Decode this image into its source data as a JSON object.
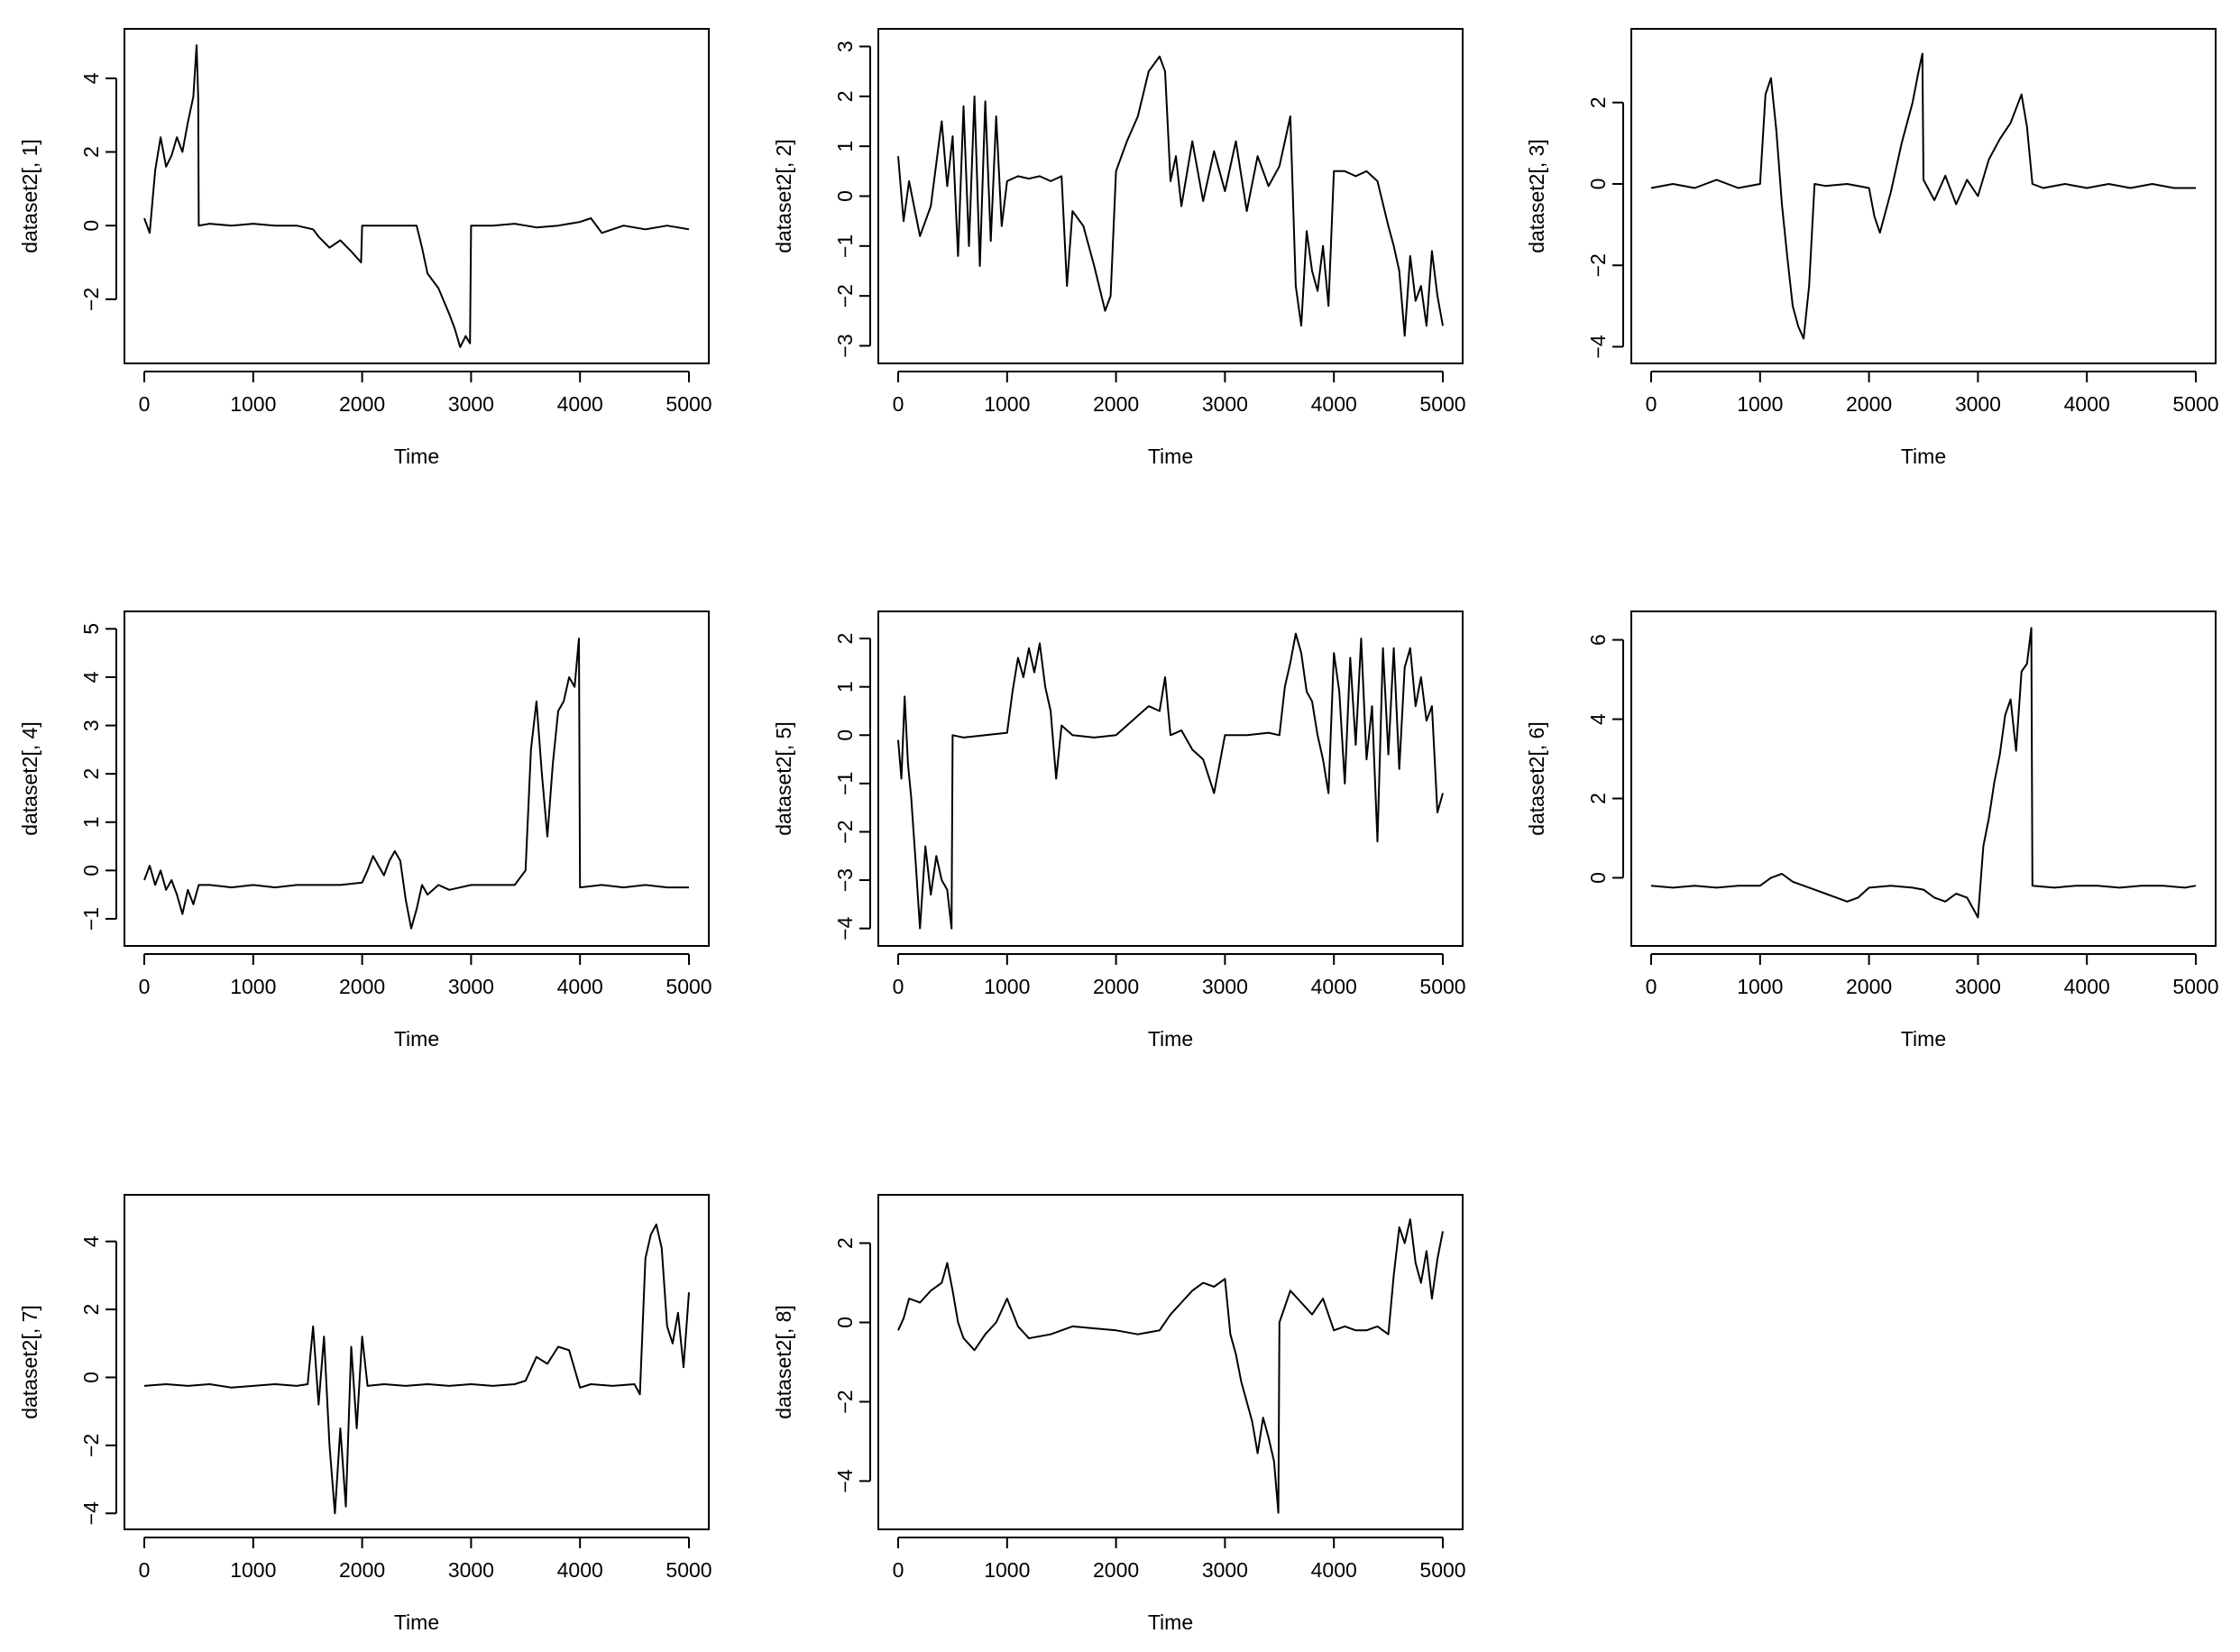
{
  "chart_data": [
    {
      "type": "line",
      "xlabel": "Time",
      "ylabel": "dataset2[, 1]",
      "xlim": [
        0,
        5000
      ],
      "xticks": [
        0,
        1000,
        2000,
        3000,
        4000,
        5000
      ],
      "ylim": [
        -3.4,
        5.0
      ],
      "yticks": [
        -2,
        0,
        2,
        4
      ],
      "ytick_labels": [
        "−2",
        "0",
        "2",
        "4"
      ],
      "grid": false,
      "x": [
        0,
        50,
        100,
        150,
        200,
        250,
        300,
        350,
        400,
        450,
        480,
        495,
        500,
        600,
        800,
        1000,
        1200,
        1400,
        1550,
        1600,
        1700,
        1800,
        1900,
        1990,
        2000,
        2200,
        2400,
        2500,
        2550,
        2600,
        2700,
        2800,
        2850,
        2900,
        2950,
        2990,
        3000,
        3200,
        3400,
        3600,
        3800,
        4000,
        4100,
        4200,
        4400,
        4600,
        4800,
        5000
      ],
      "y": [
        0.2,
        -0.2,
        1.5,
        2.4,
        1.6,
        1.9,
        2.4,
        2.0,
        2.8,
        3.5,
        4.9,
        3.5,
        0.0,
        0.05,
        0.0,
        0.05,
        0.0,
        0.0,
        -0.1,
        -0.3,
        -0.6,
        -0.4,
        -0.7,
        -1.0,
        0.0,
        0.0,
        0.0,
        0.0,
        -0.6,
        -1.3,
        -1.7,
        -2.4,
        -2.8,
        -3.3,
        -3.0,
        -3.2,
        0.0,
        0.0,
        0.05,
        -0.05,
        0.0,
        0.1,
        0.2,
        -0.2,
        0.0,
        -0.1,
        0.0,
        -0.1
      ]
    },
    {
      "type": "line",
      "xlabel": "Time",
      "ylabel": "dataset2[, 2]",
      "xlim": [
        0,
        5000
      ],
      "xticks": [
        0,
        1000,
        2000,
        3000,
        4000,
        5000
      ],
      "ylim": [
        -3.1,
        3.1
      ],
      "yticks": [
        -3,
        -2,
        -1,
        0,
        1,
        2,
        3
      ],
      "ytick_labels": [
        "−3",
        "−2",
        "−1",
        "0",
        "1",
        "2",
        "3"
      ],
      "grid": false,
      "x": [
        0,
        50,
        100,
        200,
        300,
        400,
        450,
        500,
        550,
        600,
        650,
        700,
        750,
        800,
        850,
        900,
        950,
        1000,
        1100,
        1200,
        1300,
        1400,
        1500,
        1550,
        1600,
        1700,
        1800,
        1900,
        1950,
        2000,
        2100,
        2200,
        2300,
        2400,
        2450,
        2500,
        2550,
        2600,
        2700,
        2800,
        2900,
        3000,
        3100,
        3200,
        3300,
        3400,
        3500,
        3600,
        3650,
        3700,
        3750,
        3800,
        3850,
        3900,
        3950,
        4000,
        4100,
        4200,
        4300,
        4400,
        4500,
        4550,
        4600,
        4650,
        4700,
        4750,
        4800,
        4850,
        4900,
        4950,
        5000
      ],
      "y": [
        0.8,
        -0.5,
        0.3,
        -0.8,
        -0.2,
        1.5,
        0.2,
        1.2,
        -1.2,
        1.8,
        -1.0,
        2.0,
        -1.4,
        1.9,
        -0.9,
        1.6,
        -0.6,
        0.3,
        0.4,
        0.35,
        0.4,
        0.3,
        0.4,
        -1.8,
        -0.3,
        -0.6,
        -1.4,
        -2.3,
        -2.0,
        0.5,
        1.1,
        1.6,
        2.5,
        2.8,
        2.5,
        0.3,
        0.8,
        -0.2,
        1.1,
        -0.1,
        0.9,
        0.1,
        1.1,
        -0.3,
        0.8,
        0.2,
        0.6,
        1.6,
        -1.8,
        -2.6,
        -0.7,
        -1.5,
        -1.9,
        -1.0,
        -2.2,
        0.5,
        0.5,
        0.4,
        0.5,
        0.3,
        -0.6,
        -1.0,
        -1.5,
        -2.8,
        -1.2,
        -2.1,
        -1.8,
        -2.6,
        -1.1,
        -2.0,
        -2.6
      ]
    },
    {
      "type": "line",
      "xlabel": "Time",
      "ylabel": "dataset2[, 3]",
      "xlim": [
        0,
        5000
      ],
      "xticks": [
        0,
        1000,
        2000,
        3000,
        4000,
        5000
      ],
      "ylim": [
        -4.1,
        3.5
      ],
      "yticks": [
        -4,
        -2,
        0,
        2
      ],
      "ytick_labels": [
        "−4",
        "−2",
        "0",
        "2"
      ],
      "grid": false,
      "x": [
        0,
        200,
        400,
        600,
        800,
        1000,
        1050,
        1100,
        1150,
        1200,
        1250,
        1300,
        1350,
        1400,
        1450,
        1500,
        1600,
        1800,
        2000,
        2050,
        2100,
        2200,
        2300,
        2400,
        2450,
        2490,
        2500,
        2600,
        2700,
        2800,
        2900,
        3000,
        3100,
        3200,
        3300,
        3400,
        3450,
        3500,
        3600,
        3800,
        4000,
        4200,
        4400,
        4600,
        4800,
        5000
      ],
      "y": [
        -0.1,
        0.0,
        -0.1,
        0.1,
        -0.1,
        0.0,
        2.2,
        2.6,
        1.3,
        -0.5,
        -1.8,
        -3.0,
        -3.5,
        -3.8,
        -2.5,
        0.0,
        -0.05,
        0.0,
        -0.1,
        -0.8,
        -1.2,
        -0.2,
        1.0,
        2.0,
        2.7,
        3.2,
        0.1,
        -0.4,
        0.2,
        -0.5,
        0.1,
        -0.3,
        0.6,
        1.1,
        1.5,
        2.2,
        1.4,
        0.0,
        -0.1,
        0.0,
        -0.1,
        0.0,
        -0.1,
        0.0,
        -0.1,
        -0.1
      ]
    },
    {
      "type": "line",
      "xlabel": "Time",
      "ylabel": "dataset2[, 4]",
      "xlim": [
        0,
        5000
      ],
      "xticks": [
        0,
        1000,
        2000,
        3000,
        4000,
        5000
      ],
      "ylim": [
        -1.3,
        5.1
      ],
      "yticks": [
        -1,
        0,
        1,
        2,
        3,
        4,
        5
      ],
      "ytick_labels": [
        "−1",
        "0",
        "1",
        "2",
        "3",
        "4",
        "5"
      ],
      "grid": false,
      "x": [
        0,
        50,
        100,
        150,
        200,
        250,
        300,
        350,
        400,
        450,
        500,
        600,
        800,
        1000,
        1200,
        1400,
        1600,
        1800,
        2000,
        2050,
        2100,
        2150,
        2200,
        2250,
        2300,
        2350,
        2400,
        2450,
        2500,
        2550,
        2600,
        2700,
        2800,
        3000,
        3200,
        3400,
        3500,
        3550,
        3600,
        3650,
        3700,
        3750,
        3800,
        3850,
        3900,
        3950,
        3990,
        4000,
        4200,
        4400,
        4600,
        4800,
        5000
      ],
      "y": [
        -0.2,
        0.1,
        -0.3,
        0.0,
        -0.4,
        -0.2,
        -0.5,
        -0.9,
        -0.4,
        -0.7,
        -0.3,
        -0.3,
        -0.35,
        -0.3,
        -0.35,
        -0.3,
        -0.3,
        -0.3,
        -0.25,
        0.0,
        0.3,
        0.1,
        -0.1,
        0.2,
        0.4,
        0.2,
        -0.6,
        -1.2,
        -0.8,
        -0.3,
        -0.5,
        -0.3,
        -0.4,
        -0.3,
        -0.3,
        -0.3,
        0.0,
        2.5,
        3.5,
        2.0,
        0.7,
        2.2,
        3.3,
        3.5,
        4.0,
        3.8,
        4.8,
        -0.35,
        -0.3,
        -0.35,
        -0.3,
        -0.35,
        -0.35
      ]
    },
    {
      "type": "line",
      "xlabel": "Time",
      "ylabel": "dataset2[, 5]",
      "xlim": [
        0,
        5000
      ],
      "xticks": [
        0,
        1000,
        2000,
        3000,
        4000,
        5000
      ],
      "ylim": [
        -4.1,
        2.3
      ],
      "yticks": [
        -4,
        -3,
        -2,
        -1,
        0,
        1,
        2
      ],
      "ytick_labels": [
        "−4",
        "−3",
        "−2",
        "−1",
        "0",
        "1",
        "2"
      ],
      "grid": false,
      "x": [
        0,
        30,
        60,
        90,
        120,
        160,
        200,
        250,
        300,
        350,
        400,
        450,
        490,
        500,
        600,
        800,
        1000,
        1050,
        1100,
        1150,
        1200,
        1250,
        1300,
        1350,
        1400,
        1450,
        1500,
        1600,
        1800,
        2000,
        2100,
        2200,
        2300,
        2400,
        2450,
        2500,
        2600,
        2700,
        2800,
        2900,
        2950,
        3000,
        3200,
        3400,
        3500,
        3550,
        3600,
        3650,
        3700,
        3750,
        3800,
        3850,
        3900,
        3950,
        4000,
        4050,
        4100,
        4150,
        4200,
        4250,
        4300,
        4350,
        4400,
        4450,
        4500,
        4550,
        4600,
        4650,
        4700,
        4750,
        4800,
        4850,
        4900,
        4950,
        5000
      ],
      "y": [
        -0.1,
        -0.9,
        0.8,
        -0.6,
        -1.3,
        -2.6,
        -4.0,
        -2.3,
        -3.3,
        -2.5,
        -3.0,
        -3.2,
        -4.0,
        0.0,
        -0.05,
        0.0,
        0.05,
        0.9,
        1.6,
        1.2,
        1.8,
        1.3,
        1.9,
        1.0,
        0.5,
        -0.9,
        0.2,
        0.0,
        -0.05,
        0.0,
        0.2,
        0.4,
        0.6,
        0.5,
        1.2,
        0.0,
        0.1,
        -0.3,
        -0.5,
        -1.2,
        -0.6,
        0.0,
        0.0,
        0.05,
        0.0,
        1.0,
        1.5,
        2.1,
        1.7,
        0.9,
        0.7,
        0.0,
        -0.5,
        -1.2,
        1.7,
        0.9,
        -1.0,
        1.6,
        -0.2,
        2.0,
        -0.5,
        0.6,
        -2.2,
        1.8,
        -0.4,
        1.8,
        -0.7,
        1.4,
        1.8,
        0.6,
        1.2,
        0.3,
        0.6,
        -1.6,
        -1.2
      ]
    },
    {
      "type": "line",
      "xlabel": "Time",
      "ylabel": "dataset2[, 6]",
      "xlim": [
        0,
        5000
      ],
      "xticks": [
        0,
        1000,
        2000,
        3000,
        4000,
        5000
      ],
      "ylim": [
        -1.4,
        6.4
      ],
      "yticks": [
        0,
        2,
        4,
        6
      ],
      "ytick_labels": [
        "0",
        "2",
        "4",
        "6"
      ],
      "grid": false,
      "x": [
        0,
        200,
        400,
        600,
        800,
        1000,
        1100,
        1200,
        1300,
        1400,
        1500,
        1600,
        1700,
        1800,
        1900,
        2000,
        2200,
        2400,
        2500,
        2600,
        2700,
        2800,
        2900,
        3000,
        3050,
        3100,
        3150,
        3200,
        3250,
        3300,
        3350,
        3400,
        3450,
        3490,
        3500,
        3700,
        3900,
        4100,
        4300,
        4500,
        4700,
        4900,
        5000
      ],
      "y": [
        -0.2,
        -0.25,
        -0.2,
        -0.25,
        -0.2,
        -0.2,
        0.0,
        0.1,
        -0.1,
        -0.2,
        -0.3,
        -0.4,
        -0.5,
        -0.6,
        -0.5,
        -0.25,
        -0.2,
        -0.25,
        -0.3,
        -0.5,
        -0.6,
        -0.4,
        -0.5,
        -1.0,
        0.8,
        1.5,
        2.4,
        3.1,
        4.1,
        4.5,
        3.2,
        5.2,
        5.4,
        6.3,
        -0.2,
        -0.25,
        -0.2,
        -0.2,
        -0.25,
        -0.2,
        -0.2,
        -0.25,
        -0.2
      ]
    },
    {
      "type": "line",
      "xlabel": "Time",
      "ylabel": "dataset2[, 7]",
      "xlim": [
        0,
        5000
      ],
      "xticks": [
        0,
        1000,
        2000,
        3000,
        4000,
        5000
      ],
      "ylim": [
        -4.1,
        5.0
      ],
      "yticks": [
        -4,
        -2,
        0,
        2,
        4
      ],
      "ytick_labels": [
        "−4",
        "−2",
        "0",
        "2",
        "4"
      ],
      "grid": false,
      "x": [
        0,
        200,
        400,
        600,
        800,
        1000,
        1200,
        1400,
        1500,
        1550,
        1600,
        1650,
        1700,
        1750,
        1800,
        1850,
        1900,
        1950,
        2000,
        2050,
        2200,
        2400,
        2600,
        2800,
        3000,
        3200,
        3400,
        3500,
        3600,
        3700,
        3800,
        3900,
        4000,
        4100,
        4300,
        4500,
        4550,
        4600,
        4650,
        4700,
        4750,
        4800,
        4850,
        4900,
        4950,
        5000
      ],
      "y": [
        -0.25,
        -0.2,
        -0.25,
        -0.2,
        -0.3,
        -0.25,
        -0.2,
        -0.25,
        -0.2,
        1.5,
        -0.8,
        1.2,
        -2.0,
        -4.0,
        -1.5,
        -3.8,
        0.9,
        -1.5,
        1.2,
        -0.25,
        -0.2,
        -0.25,
        -0.2,
        -0.25,
        -0.2,
        -0.25,
        -0.2,
        -0.1,
        0.6,
        0.4,
        0.9,
        0.8,
        -0.3,
        -0.2,
        -0.25,
        -0.2,
        -0.5,
        3.5,
        4.2,
        4.5,
        3.8,
        1.5,
        1.0,
        1.9,
        0.3,
        2.5
      ]
    },
    {
      "type": "line",
      "xlabel": "Time",
      "ylabel": "dataset2[, 8]",
      "xlim": [
        0,
        5000
      ],
      "xticks": [
        0,
        1000,
        2000,
        3000,
        4000,
        5000
      ],
      "ylim": [
        -4.9,
        2.9
      ],
      "yticks": [
        -4,
        -2,
        0,
        2
      ],
      "ytick_labels": [
        "−4",
        "−2",
        "0",
        "2"
      ],
      "grid": false,
      "x": [
        0,
        50,
        100,
        200,
        300,
        400,
        450,
        500,
        550,
        600,
        700,
        800,
        900,
        1000,
        1100,
        1200,
        1400,
        1600,
        1800,
        2000,
        2200,
        2400,
        2500,
        2600,
        2700,
        2800,
        2900,
        3000,
        3050,
        3100,
        3150,
        3200,
        3250,
        3300,
        3350,
        3400,
        3450,
        3490,
        3500,
        3600,
        3700,
        3800,
        3900,
        4000,
        4100,
        4200,
        4300,
        4400,
        4500,
        4550,
        4600,
        4650,
        4700,
        4750,
        4800,
        4850,
        4900,
        4950,
        5000
      ],
      "y": [
        -0.2,
        0.1,
        0.6,
        0.5,
        0.8,
        1.0,
        1.5,
        0.8,
        0.0,
        -0.4,
        -0.7,
        -0.3,
        0.0,
        0.6,
        -0.1,
        -0.4,
        -0.3,
        -0.1,
        -0.15,
        -0.2,
        -0.3,
        -0.2,
        0.2,
        0.5,
        0.8,
        1.0,
        0.9,
        1.1,
        -0.3,
        -0.8,
        -1.5,
        -2.0,
        -2.5,
        -3.3,
        -2.4,
        -2.9,
        -3.5,
        -4.8,
        0.0,
        0.8,
        0.5,
        0.2,
        0.6,
        -0.2,
        -0.1,
        -0.2,
        -0.2,
        -0.1,
        -0.3,
        1.2,
        2.4,
        2.0,
        2.6,
        1.5,
        1.0,
        1.8,
        0.6,
        1.6,
        2.3
      ]
    }
  ]
}
